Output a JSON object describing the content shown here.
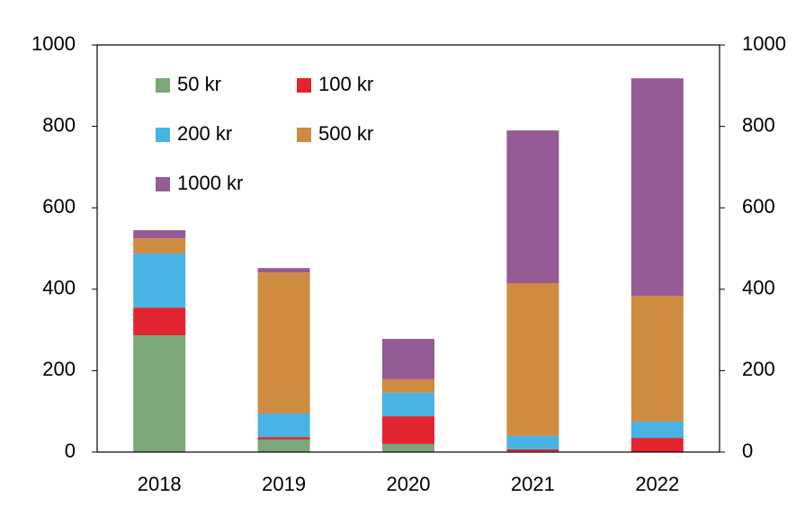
{
  "chart_data": {
    "type": "stacked_bar",
    "categories": [
      "2018",
      "2019",
      "2020",
      "2021",
      "2022"
    ],
    "series": [
      {
        "name": "50 kr",
        "color": "#7ba77b",
        "values": [
          287,
          31,
          20,
          2,
          0
        ]
      },
      {
        "name": "100 kr",
        "color": "#e1242e",
        "values": [
          68,
          6,
          68,
          5,
          35
        ]
      },
      {
        "name": "200 kr",
        "color": "#47b4e3",
        "values": [
          133,
          58,
          58,
          33,
          40
        ]
      },
      {
        "name": "500 kr",
        "color": "#cf8b40",
        "values": [
          37,
          346,
          33,
          375,
          309
        ]
      },
      {
        "name": "1000 kr",
        "color": "#955b96",
        "values": [
          20,
          11,
          99,
          375,
          534
        ]
      }
    ],
    "ylim": [
      0,
      1000
    ],
    "yticks": [
      0,
      200,
      400,
      600,
      800,
      1000
    ],
    "y2lim": [
      0,
      1000
    ],
    "y2ticks": [
      0,
      200,
      400,
      600,
      800,
      1000
    ],
    "legend": "upper left"
  }
}
